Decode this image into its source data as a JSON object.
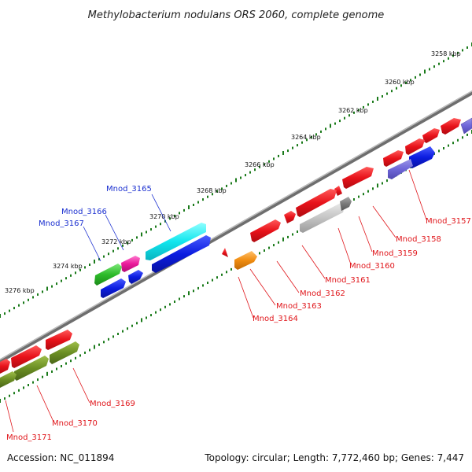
{
  "title": "Methylobacterium nodulans ORS 2060, complete genome",
  "footer": {
    "accession": "Accession: NC_011894",
    "summary": "Topology: circular; Length: 7,772,460 bp; Genes: 7,447"
  },
  "scale_labels": [
    "3258 kbp",
    "3260 kbp",
    "3262 kbp",
    "3264 kbp",
    "3266 kbp",
    "3268 kbp",
    "3270 kbp",
    "3272 kbp",
    "3274 kbp",
    "3276 kbp"
  ],
  "genes": [
    {
      "id": "Mnod_3157",
      "color": "#e0161b"
    },
    {
      "id": "Mnod_3158",
      "color": "#e0161b"
    },
    {
      "id": "Mnod_3159",
      "color": "#e0161b"
    },
    {
      "id": "Mnod_3160",
      "color": "#e0161b"
    },
    {
      "id": "Mnod_3161",
      "color": "#e0161b"
    },
    {
      "id": "Mnod_3162",
      "color": "#e0161b"
    },
    {
      "id": "Mnod_3163",
      "color": "#e0161b"
    },
    {
      "id": "Mnod_3164",
      "color": "#e0161b"
    },
    {
      "id": "Mnod_3165",
      "color": "#1a2fd0"
    },
    {
      "id": "Mnod_3166",
      "color": "#1a2fd0"
    },
    {
      "id": "Mnod_3167",
      "color": "#1a2fd0"
    },
    {
      "id": "Mnod_3169",
      "color": "#e0161b"
    },
    {
      "id": "Mnod_3170",
      "color": "#e0161b"
    },
    {
      "id": "Mnod_3171",
      "color": "#e0161b"
    }
  ]
}
